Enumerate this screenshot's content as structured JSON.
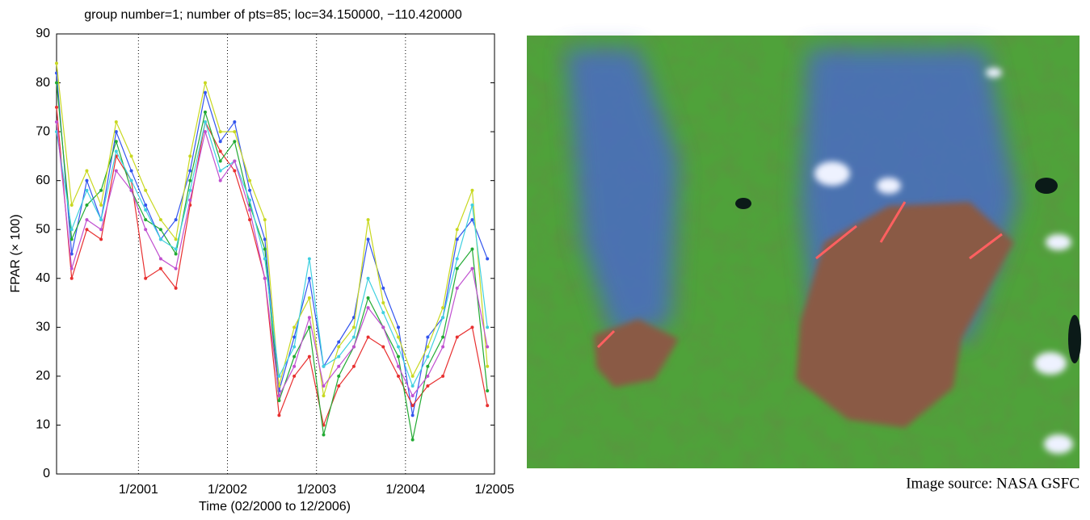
{
  "chart_data": {
    "type": "line",
    "title": "group number=1; number of pts=85; loc=34.150000, −110.420000",
    "x_label": "Time (02/2000 to 12/2006)",
    "y_label": "FPAR (× 100)",
    "x": [
      2000.08,
      2000.25,
      2000.42,
      2000.58,
      2000.75,
      2000.92,
      2001.08,
      2001.25,
      2001.42,
      2001.58,
      2001.75,
      2001.92,
      2002.08,
      2002.25,
      2002.42,
      2002.58,
      2002.75,
      2002.92,
      2003.08,
      2003.25,
      2003.42,
      2003.58,
      2003.75,
      2003.92,
      2004.08,
      2004.25,
      2004.42,
      2004.58,
      2004.75,
      2004.92
    ],
    "series": [
      {
        "color": "#3355ee",
        "values": [
          82,
          45,
          60,
          52,
          70,
          62,
          55,
          48,
          52,
          62,
          78,
          68,
          72,
          58,
          48,
          17,
          28,
          40,
          22,
          27,
          32,
          48,
          38,
          30,
          12,
          28,
          32,
          48,
          52,
          44
        ]
      },
      {
        "color": "#e83030",
        "values": [
          75,
          40,
          50,
          48,
          65,
          60,
          40,
          42,
          38,
          55,
          72,
          66,
          62,
          52,
          40,
          12,
          20,
          24,
          10,
          18,
          22,
          28,
          26,
          20,
          14,
          18,
          20,
          28,
          30,
          14
        ]
      },
      {
        "color": "#22aa33",
        "values": [
          80,
          48,
          55,
          58,
          68,
          58,
          52,
          50,
          45,
          60,
          74,
          64,
          68,
          55,
          46,
          15,
          24,
          30,
          8,
          20,
          26,
          36,
          30,
          24,
          7,
          22,
          28,
          42,
          46,
          17
        ]
      },
      {
        "color": "#c8d820",
        "values": [
          84,
          55,
          62,
          55,
          72,
          65,
          58,
          52,
          48,
          65,
          80,
          70,
          70,
          60,
          52,
          18,
          30,
          36,
          16,
          26,
          30,
          52,
          35,
          28,
          20,
          26,
          34,
          50,
          58,
          22
        ]
      },
      {
        "color": "#40d0e0",
        "values": [
          70,
          50,
          58,
          52,
          66,
          60,
          54,
          48,
          46,
          58,
          72,
          62,
          64,
          56,
          44,
          20,
          26,
          44,
          22,
          24,
          28,
          40,
          33,
          26,
          18,
          24,
          32,
          44,
          55,
          30
        ]
      },
      {
        "color": "#c050d0",
        "values": [
          72,
          42,
          52,
          50,
          62,
          58,
          50,
          44,
          42,
          56,
          70,
          60,
          64,
          54,
          40,
          16,
          22,
          32,
          18,
          22,
          26,
          34,
          30,
          22,
          16,
          20,
          26,
          38,
          42,
          26
        ]
      }
    ],
    "xlim": [
      2000.08,
      2005.0
    ],
    "xticks": [
      {
        "value": 2001,
        "label": "1/2001"
      },
      {
        "value": 2002,
        "label": "1/2002"
      },
      {
        "value": 2003,
        "label": "1/2003"
      },
      {
        "value": 2004,
        "label": "1/2004"
      },
      {
        "value": 2005,
        "label": "1/2005"
      }
    ],
    "ylim": [
      0,
      90
    ],
    "yticks": [
      0,
      10,
      20,
      30,
      40,
      50,
      60,
      70,
      80,
      90
    ],
    "xgrid": true
  },
  "image": {
    "caption": "Image source: NASA GSFC"
  }
}
